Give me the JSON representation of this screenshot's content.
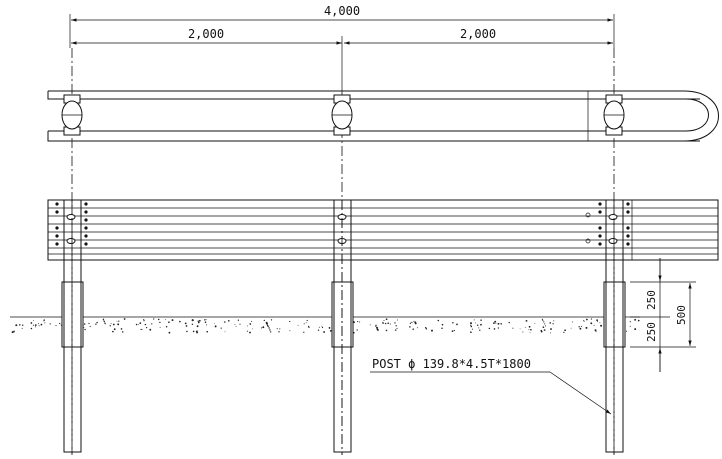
{
  "dimensions": {
    "overall": "4,000",
    "left_span": "2,000",
    "right_span": "2,000",
    "upper_embed": "250",
    "lower_embed": "250",
    "embed_total": "500"
  },
  "callout": {
    "post_spec": "POST  ϕ 139.8*4.5T*1800"
  }
}
